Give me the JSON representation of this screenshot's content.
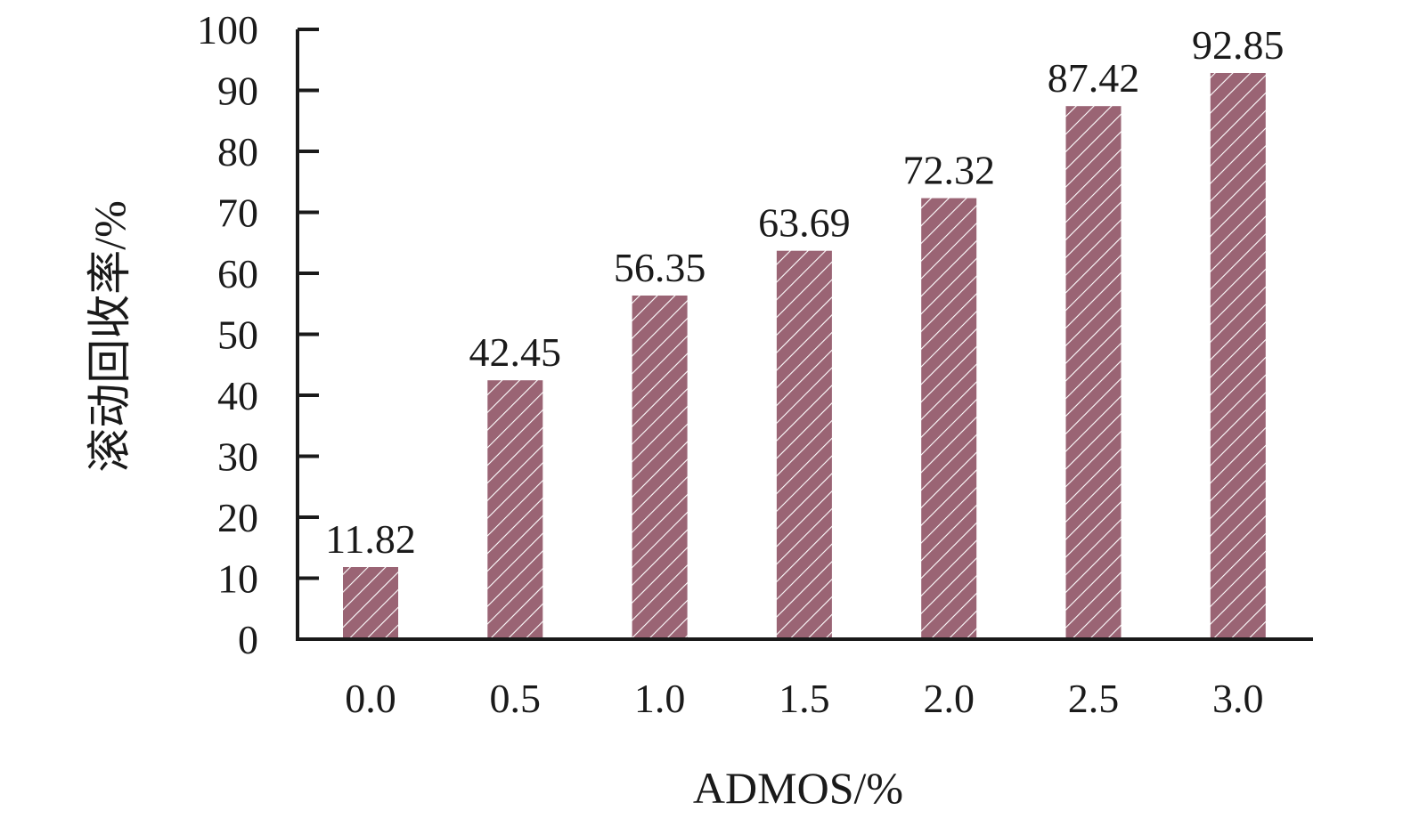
{
  "chart_data": {
    "type": "bar",
    "categories": [
      "0.0",
      "0.5",
      "1.0",
      "1.5",
      "2.0",
      "2.5",
      "3.0"
    ],
    "values": [
      11.82,
      42.45,
      56.35,
      63.69,
      72.32,
      87.42,
      92.85
    ],
    "value_labels": [
      "11.82",
      "42.45",
      "56.35",
      "63.69",
      "72.32",
      "87.42",
      "92.85"
    ],
    "xlabel": "ADMOS/%",
    "ylabel": "滚动回收率/%",
    "ylim": [
      0,
      100
    ],
    "yticks": [
      0,
      10,
      20,
      30,
      40,
      50,
      60,
      70,
      80,
      90,
      100
    ],
    "ytick_labels": [
      "0",
      "10",
      "20",
      "30",
      "40",
      "50",
      "60",
      "70",
      "80",
      "90",
      "100"
    ],
    "grid": false,
    "legend": "none",
    "bar_fill": "hatched",
    "colors": {
      "bar": "#9a6474",
      "hatch": "#ffffff",
      "axis": "#1a1a1a",
      "text": "#1a1a1a"
    }
  }
}
